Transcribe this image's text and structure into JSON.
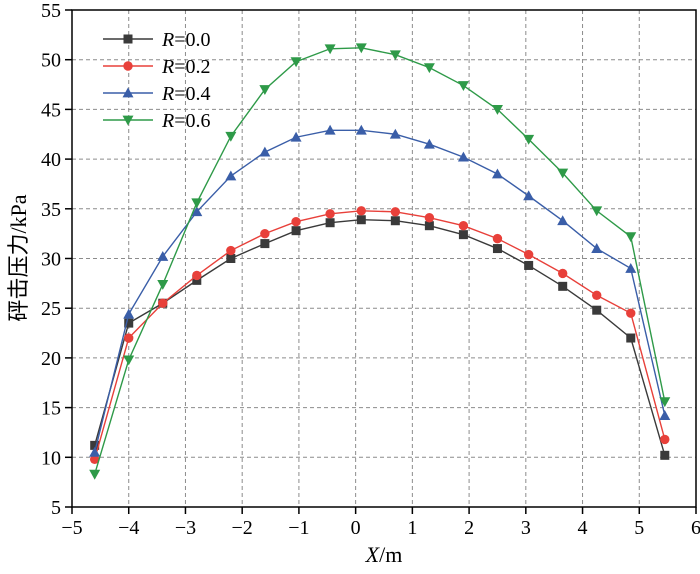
{
  "chart_data": {
    "type": "line",
    "xlabel_var": "X",
    "xlabel_unit": "/m",
    "ylabel": "砰击压力/kPa",
    "xlim": [
      -5,
      6
    ],
    "ylim": [
      5,
      55
    ],
    "xticks": [
      -5,
      -4,
      -3,
      -2,
      -1,
      0,
      1,
      2,
      3,
      4,
      5,
      6
    ],
    "yticks": [
      5,
      10,
      15,
      20,
      25,
      30,
      35,
      40,
      45,
      50,
      55
    ],
    "grid": true,
    "legend_position": "top-left",
    "x": [
      -4.6,
      -4.0,
      -3.4,
      -2.8,
      -2.2,
      -1.6,
      -1.05,
      -0.45,
      0.1,
      0.7,
      1.3,
      1.9,
      2.5,
      3.05,
      3.65,
      4.25,
      4.85,
      5.45
    ],
    "series": [
      {
        "name_var": "R",
        "name_val": "=0.0",
        "color": "#3a3a3a",
        "marker": "square",
        "values": [
          11.2,
          23.5,
          25.5,
          27.8,
          30.0,
          31.5,
          32.8,
          33.6,
          33.9,
          33.8,
          33.3,
          32.4,
          31.0,
          29.3,
          27.2,
          24.8,
          22.0,
          10.2
        ]
      },
      {
        "name_var": "R",
        "name_val": "=0.2",
        "color": "#e8403a",
        "marker": "circle",
        "values": [
          9.8,
          22.0,
          25.5,
          28.3,
          30.8,
          32.5,
          33.7,
          34.5,
          34.8,
          34.7,
          34.1,
          33.3,
          32.0,
          30.4,
          28.5,
          26.3,
          24.5,
          11.8
        ]
      },
      {
        "name_var": "R",
        "name_val": "=0.4",
        "color": "#3a5ea8",
        "marker": "triangle-up",
        "values": [
          10.5,
          24.4,
          30.2,
          34.7,
          38.3,
          40.7,
          42.2,
          42.9,
          42.9,
          42.5,
          41.5,
          40.2,
          38.5,
          36.3,
          33.8,
          31.0,
          29.0,
          14.2
        ]
      },
      {
        "name_var": "R",
        "name_val": "=0.6",
        "color": "#2e9a48",
        "marker": "triangle-down",
        "values": [
          8.3,
          19.8,
          27.4,
          35.6,
          42.3,
          47.0,
          49.8,
          51.1,
          51.2,
          50.5,
          49.2,
          47.4,
          45.0,
          42.0,
          38.6,
          34.8,
          32.2,
          15.6
        ]
      }
    ]
  }
}
